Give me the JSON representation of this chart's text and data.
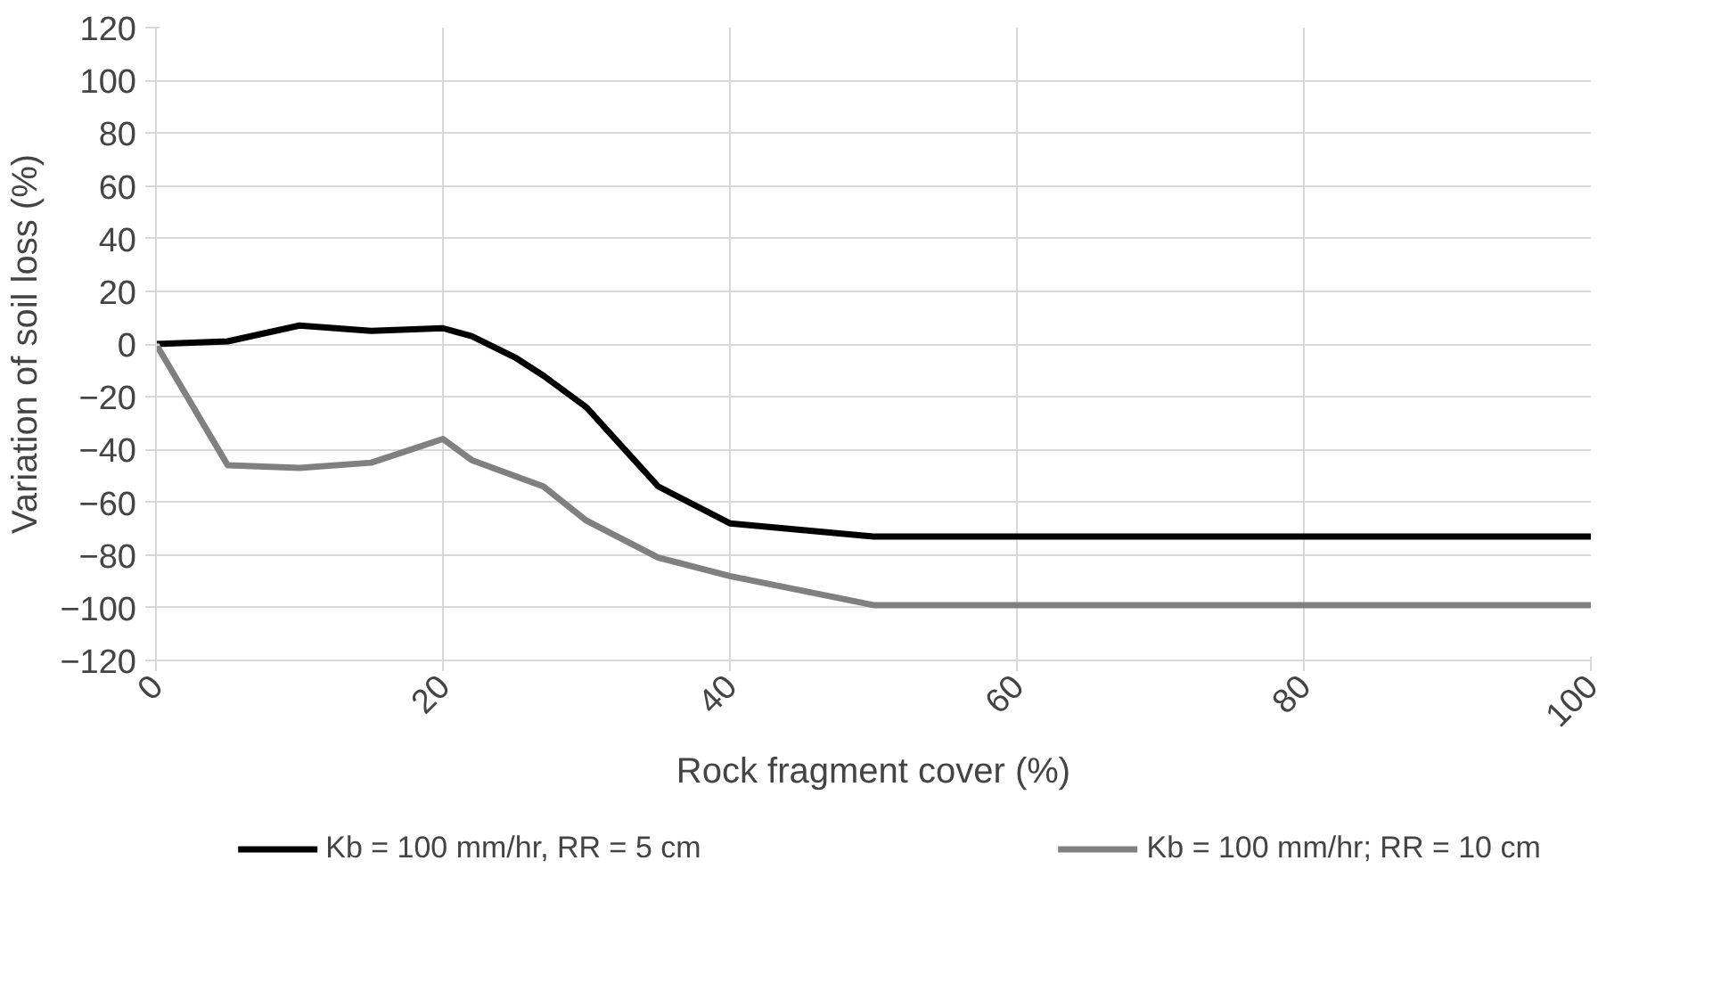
{
  "chart_data": {
    "type": "line",
    "xlabel": "Rock fragment cover (%)",
    "ylabel": "Variation of soil loss (%)",
    "xlim": [
      0,
      100
    ],
    "xticks": [
      0,
      20,
      40,
      60,
      80,
      100
    ],
    "ylim": [
      -120,
      120
    ],
    "yticks": [
      -120,
      -100,
      -80,
      -60,
      -40,
      -20,
      0,
      20,
      40,
      60,
      80,
      100,
      120
    ],
    "grid": true,
    "legend": "bottom",
    "marker": "none",
    "line_style": "solid",
    "series": [
      {
        "name": "Kb = 100 mm/hr, RR = 5 cm",
        "color": "#000000",
        "x": [
          0,
          5,
          10,
          15,
          20,
          22,
          25,
          27,
          30,
          35,
          40,
          50,
          100
        ],
        "values": [
          0,
          1,
          7,
          5,
          6,
          3,
          -5,
          -12,
          -24,
          -54,
          -68,
          -73,
          -73
        ]
      },
      {
        "name": "Kb = 100 mm/hr; RR = 10 cm",
        "color": "#808080",
        "x": [
          0,
          5,
          10,
          15,
          20,
          22,
          25,
          27,
          30,
          35,
          40,
          50,
          100
        ],
        "values": [
          0,
          -46,
          -47,
          -45,
          -36,
          -44,
          -50,
          -54,
          -67,
          -81,
          -88,
          -99,
          -99
        ]
      }
    ]
  }
}
